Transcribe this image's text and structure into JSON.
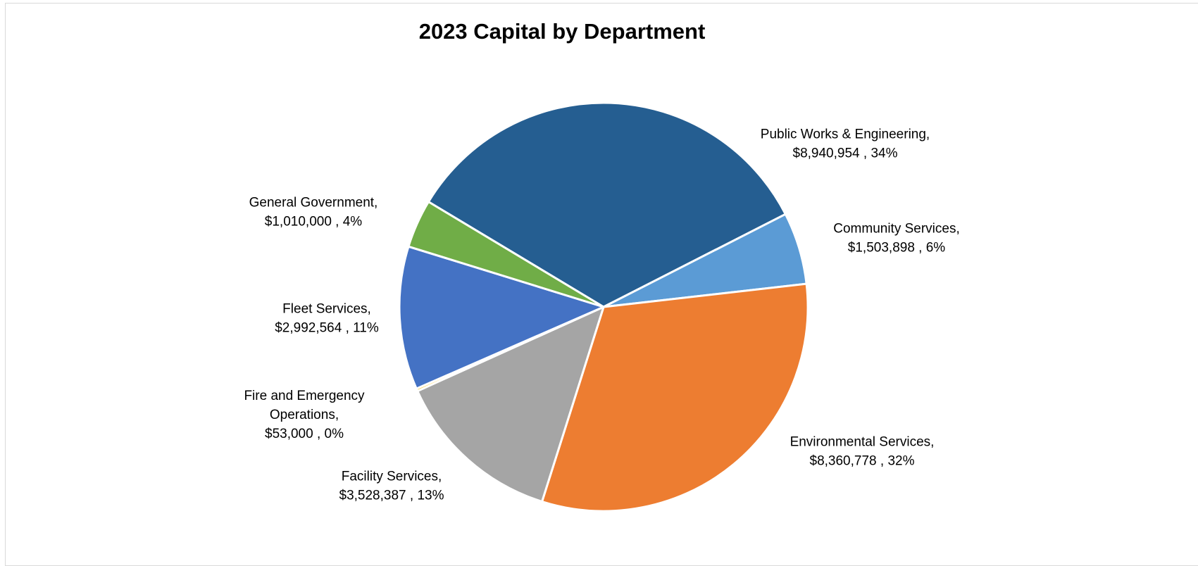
{
  "chart_data": {
    "type": "pie",
    "title": "2023 Capital by Department",
    "series": [
      {
        "values": [
          8940954,
          1503898,
          8360778,
          3528387,
          53000,
          2992564,
          1010000
        ]
      }
    ],
    "slices": [
      {
        "name": "Public Works & Engineering",
        "value": 8940954,
        "value_label": "$8,940,954",
        "percent": "34%",
        "color": "#255e91",
        "label_lines": [
          "Public Works & Engineering,",
          "$8,940,954 , 34%"
        ]
      },
      {
        "name": "Community Services",
        "value": 1503898,
        "value_label": "$1,503,898",
        "percent": "6%",
        "color": "#5b9bd5",
        "label_lines": [
          "Community Services,",
          "$1,503,898 , 6%"
        ]
      },
      {
        "name": "Environmental Services",
        "value": 8360778,
        "value_label": "$8,360,778",
        "percent": "32%",
        "color": "#ed7d31",
        "label_lines": [
          "Environmental Services,",
          "$8,360,778 , 32%"
        ]
      },
      {
        "name": "Facility Services",
        "value": 3528387,
        "value_label": "$3,528,387",
        "percent": "13%",
        "color": "#a5a5a5",
        "label_lines": [
          "Facility Services,",
          "$3,528,387 , 13%"
        ]
      },
      {
        "name": "Fire and Emergency Operations",
        "value": 53000,
        "value_label": "$53,000",
        "percent": "0%",
        "color": "#ffc000",
        "label_lines": [
          "Fire and Emergency",
          "Operations,",
          "$53,000 , 0%"
        ]
      },
      {
        "name": "Fleet Services",
        "value": 2992564,
        "value_label": "$2,992,564",
        "percent": "11%",
        "color": "#4472c4",
        "label_lines": [
          "Fleet Services,",
          "$2,992,564 , 11%"
        ]
      },
      {
        "name": "General Government",
        "value": 1010000,
        "value_label": "$1,010,000",
        "percent": "4%",
        "color": "#70ad47",
        "label_lines": [
          "General Government,",
          "$1,010,000 , 4%"
        ]
      }
    ],
    "legend": "none",
    "data_labels": "outside"
  }
}
